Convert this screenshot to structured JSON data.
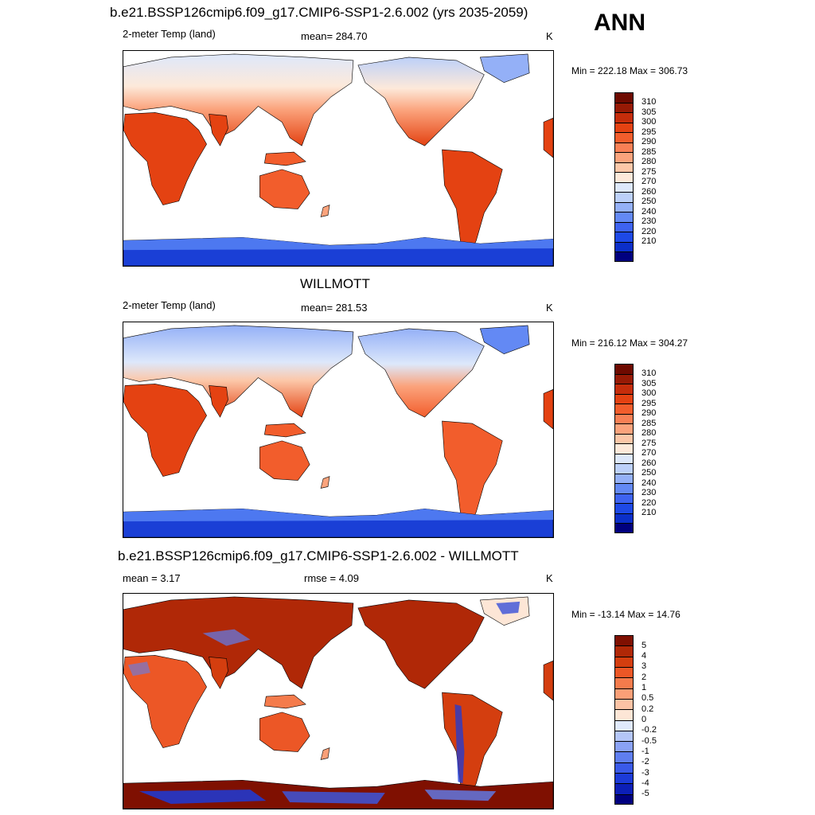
{
  "header": {
    "season": "ANN"
  },
  "colors": {
    "abs_scale": [
      "#00007f",
      "#0b2fc9",
      "#1e49e6",
      "#3e63f0",
      "#6389f4",
      "#94b0f7",
      "#bcd0f9",
      "#dde8fb",
      "#fde9da",
      "#fcc7a8",
      "#fba37c",
      "#f88055",
      "#f25d2c",
      "#e44212",
      "#c52d0b",
      "#971a05",
      "#6e0a00"
    ],
    "diff_scale": [
      "#00007f",
      "#0c1fb7",
      "#1c3bd8",
      "#3a5ae8",
      "#5f7ef0",
      "#8aa2f5",
      "#b4c6f8",
      "#e0e9fb",
      "#fde6d6",
      "#fcc3a5",
      "#fa9f77",
      "#f47b4c",
      "#ec5726",
      "#d43e0f",
      "#b02807",
      "#7f1001"
    ],
    "ocean": "#ffffff",
    "antarctic_deep": "#1a3fd6",
    "antarctic_light": "#4d78f0"
  },
  "panels": [
    {
      "title": "b.e21.BSSP126cmip6.f09_g17.CMIP6-SSP1-2.6.002 (yrs 2035-2059)",
      "left_label": "2-meter Temp (land)",
      "center_label": "mean= 284.70",
      "units": "K",
      "minmax": "Min = 222.18 Max = 306.73",
      "colorbar_labels": [
        "310",
        "305",
        "300",
        "295",
        "290",
        "285",
        "280",
        "275",
        "270",
        "260",
        "250",
        "240",
        "230",
        "220",
        "210"
      ]
    },
    {
      "title": "WILLMOTT",
      "left_label": "2-meter Temp (land)",
      "center_label": "mean= 281.53",
      "units": "K",
      "minmax": "Min = 216.12 Max = 304.27",
      "colorbar_labels": [
        "310",
        "305",
        "300",
        "295",
        "290",
        "285",
        "280",
        "275",
        "270",
        "260",
        "250",
        "240",
        "230",
        "220",
        "210"
      ]
    },
    {
      "title": "b.e21.BSSP126cmip6.f09_g17.CMIP6-SSP1-2.6.002 - WILLMOTT",
      "left_label": "mean =   3.17",
      "center_label": "rmse =   4.09",
      "units": "K",
      "minmax": "Min = -13.14 Max =  14.76",
      "colorbar_labels": [
        "5",
        "4",
        "3",
        "2",
        "1",
        "0.5",
        "0.2",
        "0",
        "-0.2",
        "-0.5",
        "-1",
        "-2",
        "-3",
        "-4",
        "-5"
      ]
    }
  ]
}
